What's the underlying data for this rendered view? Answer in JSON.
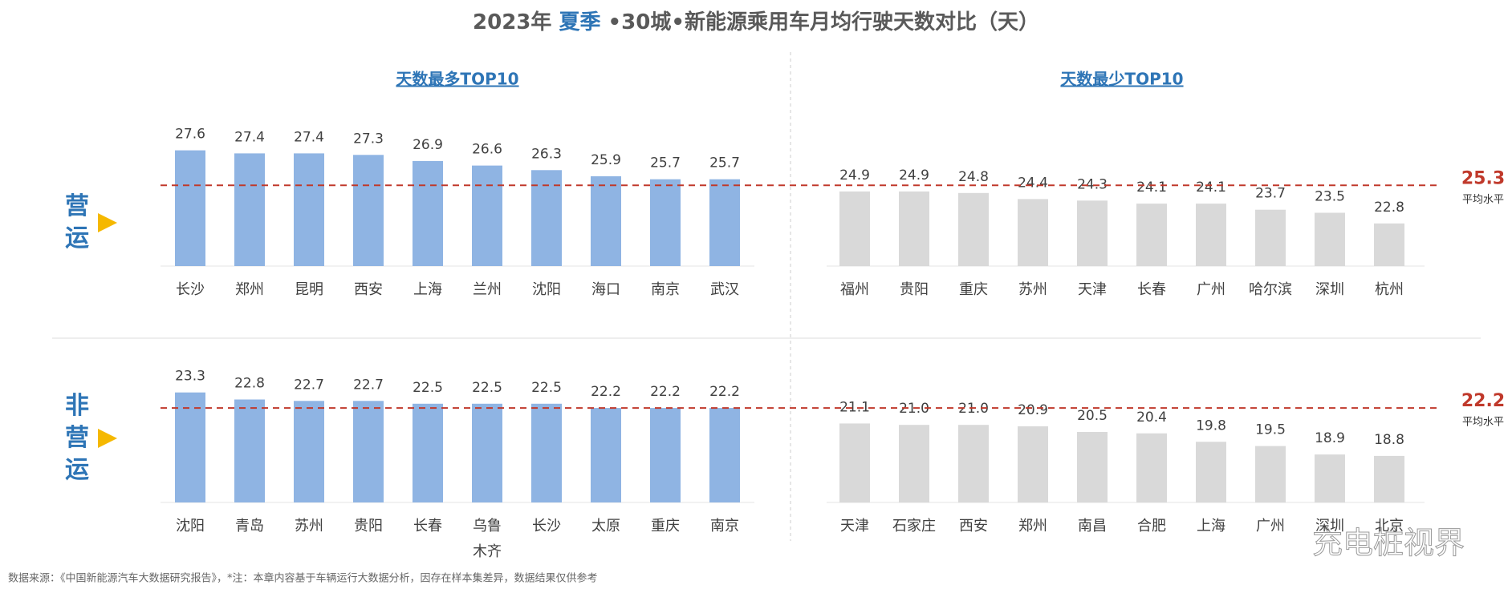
{
  "title_parts": [
    "2023年 ",
    "夏季",
    " •30城•新能源乘用车月均行驶天数对比（天）"
  ],
  "headers": [
    "天数最多TOP10",
    "天数最少TOP10"
  ],
  "rows": [
    {
      "label": "营运",
      "average": 25.3,
      "average_label": "平均水平"
    },
    {
      "label": "非营运",
      "average": 22.2,
      "average_label": "平均水平"
    }
  ],
  "chart_data": [
    {
      "type": "bar",
      "categories": [
        "长沙",
        "郑州",
        "昆明",
        "西安",
        "上海",
        "兰州",
        "沈阳",
        "海口",
        "南京",
        "武汉"
      ],
      "values": [
        27.6,
        27.4,
        27.4,
        27.3,
        26.9,
        26.6,
        26.3,
        25.9,
        25.7,
        25.7
      ],
      "color": "#8fb4e3",
      "ylim": [
        20,
        28
      ]
    },
    {
      "type": "bar",
      "categories": [
        "福州",
        "贵阳",
        "重庆",
        "苏州",
        "天津",
        "长春",
        "广州",
        "哈尔滨",
        "深圳",
        "杭州"
      ],
      "values": [
        24.9,
        24.9,
        24.8,
        24.4,
        24.3,
        24.1,
        24.1,
        23.7,
        23.5,
        22.8
      ],
      "color": "#d9d9d9",
      "ylim": [
        20,
        28
      ]
    },
    {
      "type": "bar",
      "categories": [
        "沈阳",
        "青岛",
        "苏州",
        "贵阳",
        "长春",
        "乌鲁木齐",
        "长沙",
        "太原",
        "重庆",
        "南京"
      ],
      "values": [
        23.3,
        22.8,
        22.7,
        22.7,
        22.5,
        22.5,
        22.5,
        22.2,
        22.2,
        22.2
      ],
      "color": "#8fb4e3",
      "ylim": [
        15.5,
        24
      ]
    },
    {
      "type": "bar",
      "categories": [
        "天津",
        "石家庄",
        "西安",
        "郑州",
        "南昌",
        "合肥",
        "上海",
        "广州",
        "深圳",
        "北京"
      ],
      "values": [
        21.1,
        21,
        21,
        20.9,
        20.5,
        20.4,
        19.8,
        19.5,
        18.9,
        18.8
      ],
      "value_labels": [
        "21.1",
        "21.0",
        "21.0",
        "20.9",
        "20.5",
        "20.4",
        "19.8",
        "19.5",
        "18.9",
        "18.8"
      ],
      "color": "#d9d9d9",
      "ylim": [
        15.5,
        24
      ]
    }
  ],
  "source": "数据来源：《中国新能源汽车大数据研究报告》，*注：本章内容基于车辆运行大数据分析，因存在样本集差异，数据结果仅供参考",
  "logo": "充电桩视界"
}
